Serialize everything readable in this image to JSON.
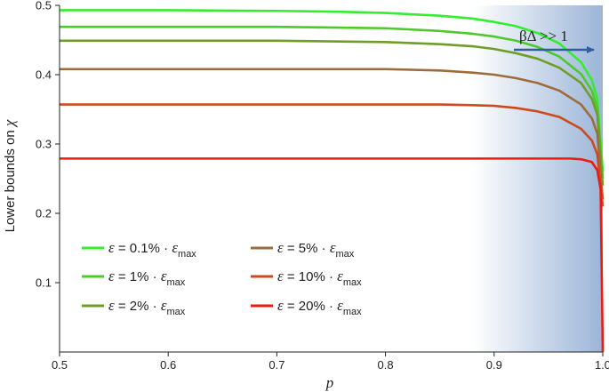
{
  "chart_data": {
    "type": "line",
    "xlabel": "p",
    "ylabel_prefix": "Lower bounds on ",
    "ylabel_var": "χ",
    "xlim": [
      0.5,
      1.0
    ],
    "ylim": [
      0.0,
      0.5
    ],
    "x_ticks": [
      "0.5",
      "0.6",
      "0.7",
      "0.8",
      "0.9",
      "1.0"
    ],
    "y_ticks": [
      "0.1",
      "0.2",
      "0.3",
      "0.4",
      "0.5"
    ],
    "x_tick_values": [
      0.5,
      0.6,
      0.7,
      0.8,
      0.9,
      1.0
    ],
    "y_tick_values": [
      0.1,
      0.2,
      0.3,
      0.4,
      0.5
    ],
    "shaded_region": {
      "x_start": 0.88,
      "x_end": 1.0,
      "color": "#9bb5d8"
    },
    "annotation": {
      "text": "βΔ >> 1",
      "arrow_color": "#2f5f9e"
    },
    "series": [
      {
        "legend": "ε = 0.1% · ε",
        "sub": "max",
        "color": "#33ee2e",
        "plateau": 0.493,
        "end": 0.26,
        "x": [
          0.5,
          0.6,
          0.7,
          0.75,
          0.8,
          0.85,
          0.88,
          0.9,
          0.92,
          0.94,
          0.96,
          0.98,
          0.99,
          0.995,
          1.0
        ],
        "y": [
          0.493,
          0.493,
          0.492,
          0.491,
          0.489,
          0.485,
          0.481,
          0.476,
          0.47,
          0.46,
          0.445,
          0.418,
          0.392,
          0.365,
          0.26
        ]
      },
      {
        "legend": "ε = 1% · ε",
        "sub": "max",
        "color": "#4ec92a",
        "plateau": 0.469,
        "end": 0.25,
        "x": [
          0.5,
          0.6,
          0.7,
          0.75,
          0.8,
          0.85,
          0.88,
          0.9,
          0.92,
          0.94,
          0.96,
          0.98,
          0.99,
          0.995,
          1.0
        ],
        "y": [
          0.469,
          0.469,
          0.469,
          0.468,
          0.467,
          0.463,
          0.459,
          0.455,
          0.449,
          0.44,
          0.426,
          0.401,
          0.377,
          0.352,
          0.25
        ]
      },
      {
        "legend": "ε = 2% · ε",
        "sub": "max",
        "color": "#6f9e28",
        "plateau": 0.449,
        "end": 0.24,
        "x": [
          0.5,
          0.6,
          0.7,
          0.75,
          0.8,
          0.85,
          0.88,
          0.9,
          0.92,
          0.94,
          0.96,
          0.98,
          0.99,
          0.995,
          1.0
        ],
        "y": [
          0.449,
          0.449,
          0.449,
          0.448,
          0.447,
          0.444,
          0.441,
          0.437,
          0.431,
          0.423,
          0.41,
          0.388,
          0.365,
          0.342,
          0.24
        ]
      },
      {
        "legend": "ε = 5% · ε",
        "sub": "max",
        "color": "#9e6c3a",
        "plateau": 0.408,
        "end": 0.22,
        "x": [
          0.5,
          0.6,
          0.7,
          0.75,
          0.8,
          0.85,
          0.88,
          0.9,
          0.92,
          0.94,
          0.96,
          0.98,
          0.99,
          0.995,
          1.0
        ],
        "y": [
          0.408,
          0.408,
          0.408,
          0.408,
          0.408,
          0.406,
          0.403,
          0.4,
          0.395,
          0.388,
          0.377,
          0.357,
          0.337,
          0.315,
          0.22
        ]
      },
      {
        "legend": "ε = 10% · ε",
        "sub": "max",
        "color": "#cc4a1c",
        "plateau": 0.357,
        "end": 0.21,
        "x": [
          0.5,
          0.6,
          0.7,
          0.75,
          0.8,
          0.85,
          0.88,
          0.9,
          0.92,
          0.94,
          0.96,
          0.98,
          0.99,
          0.995,
          1.0
        ],
        "y": [
          0.357,
          0.357,
          0.357,
          0.357,
          0.357,
          0.357,
          0.356,
          0.355,
          0.352,
          0.347,
          0.339,
          0.322,
          0.305,
          0.285,
          0.21
        ]
      },
      {
        "legend": "ε = 20% · ε",
        "sub": "max",
        "color": "#ee1a12",
        "plateau": 0.279,
        "end": 0.0,
        "x": [
          0.5,
          0.6,
          0.7,
          0.8,
          0.9,
          0.95,
          0.97,
          0.98,
          0.99,
          0.995,
          0.998,
          1.0
        ],
        "y": [
          0.279,
          0.279,
          0.279,
          0.279,
          0.279,
          0.279,
          0.279,
          0.278,
          0.274,
          0.262,
          0.235,
          0.0
        ]
      }
    ]
  }
}
